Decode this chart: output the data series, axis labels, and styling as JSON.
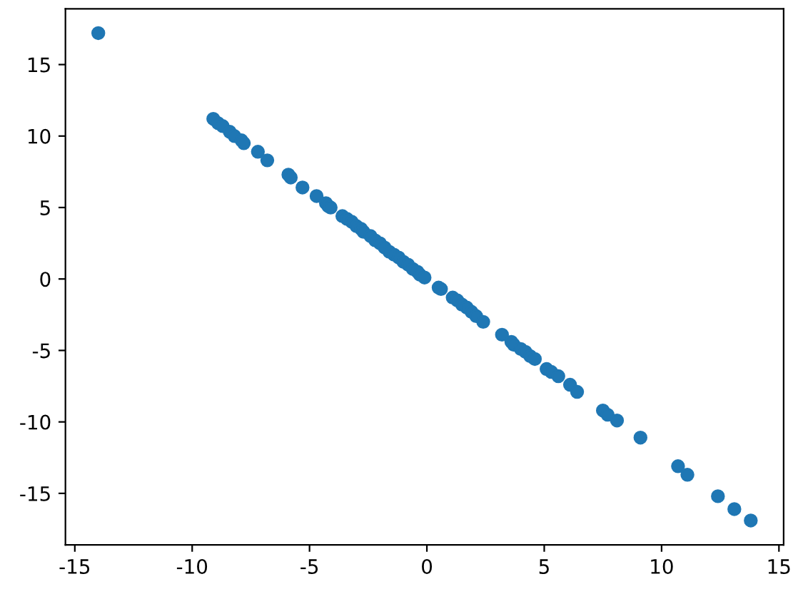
{
  "chart_data": {
    "type": "scatter",
    "x": [
      -14.0,
      -9.1,
      -8.9,
      -8.7,
      -8.4,
      -8.2,
      -7.9,
      -7.8,
      -7.2,
      -6.8,
      -5.9,
      -5.8,
      -5.3,
      -4.7,
      -4.3,
      -4.2,
      -4.1,
      -3.6,
      -3.4,
      -3.2,
      -3.0,
      -2.8,
      -2.7,
      -2.4,
      -2.2,
      -2.0,
      -1.8,
      -1.6,
      -1.4,
      -1.2,
      -1.0,
      -0.8,
      -0.6,
      -0.4,
      -0.3,
      -0.1,
      0.5,
      0.6,
      1.1,
      1.3,
      1.5,
      1.7,
      1.9,
      2.1,
      2.4,
      3.2,
      3.6,
      3.7,
      4.0,
      4.2,
      4.4,
      4.6,
      5.1,
      5.3,
      5.6,
      6.1,
      6.4,
      7.5,
      7.7,
      8.1,
      9.1,
      10.7,
      11.1,
      12.4,
      13.1,
      13.8
    ],
    "series": [
      {
        "color": "#1f77b4",
        "values": [
          17.2,
          11.2,
          10.9,
          10.7,
          10.3,
          10.0,
          9.7,
          9.5,
          8.9,
          8.3,
          7.3,
          7.1,
          6.4,
          5.8,
          5.3,
          5.1,
          5.0,
          4.4,
          4.2,
          4.0,
          3.7,
          3.5,
          3.3,
          3.0,
          2.7,
          2.5,
          2.2,
          1.9,
          1.7,
          1.5,
          1.2,
          1.0,
          0.7,
          0.5,
          0.3,
          0.1,
          -0.6,
          -0.7,
          -1.3,
          -1.5,
          -1.8,
          -2.0,
          -2.3,
          -2.6,
          -3.0,
          -3.9,
          -4.4,
          -4.6,
          -4.9,
          -5.1,
          -5.4,
          -5.6,
          -6.3,
          -6.5,
          -6.8,
          -7.4,
          -7.9,
          -9.2,
          -9.5,
          -9.9,
          -11.1,
          -13.1,
          -13.7,
          -15.2,
          -16.1,
          -16.9
        ]
      }
    ],
    "xlim": [
      -15.4,
      15.2
    ],
    "ylim": [
      -18.6,
      18.9
    ],
    "xticks": [
      -15,
      -10,
      -5,
      0,
      5,
      10,
      15
    ],
    "yticks": [
      -15,
      -10,
      -5,
      0,
      5,
      10,
      15
    ],
    "marker": "circle"
  }
}
